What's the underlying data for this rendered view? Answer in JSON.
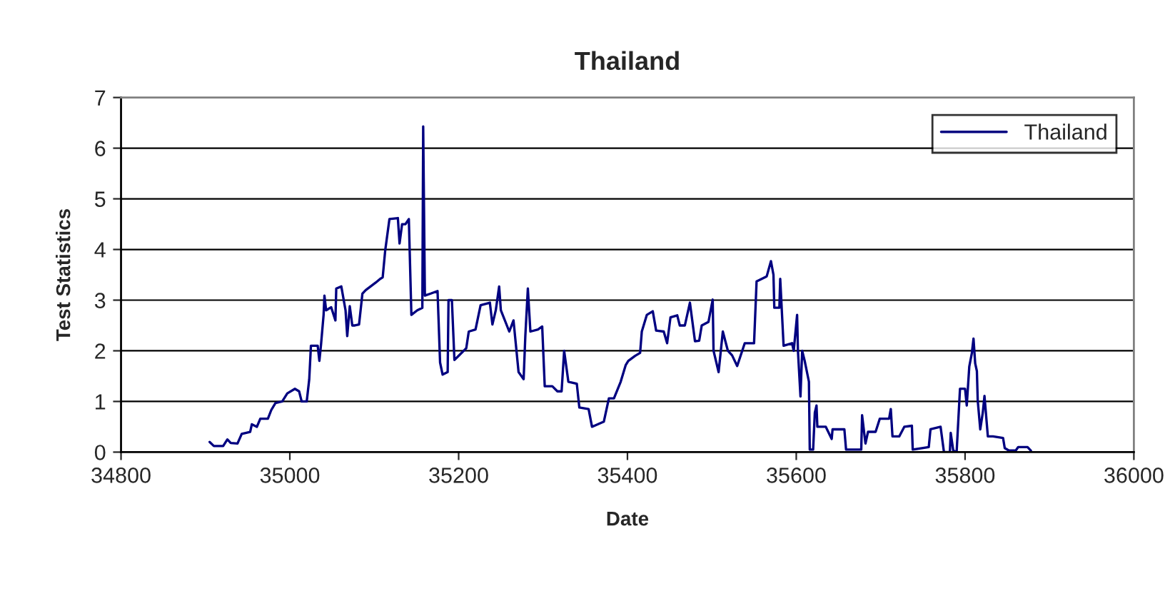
{
  "chart_data": {
    "type": "line",
    "title": "Thailand",
    "xlabel": "Date",
    "ylabel": "Test Statistics",
    "xlim": [
      34800,
      36000
    ],
    "xticks": [
      34800,
      35000,
      35200,
      35400,
      35600,
      35800,
      36000
    ],
    "ylim": [
      0,
      7
    ],
    "yticks": [
      0,
      1,
      2,
      3,
      4,
      5,
      6,
      7
    ],
    "grid": "y",
    "legend": "top right",
    "marker": "none",
    "line_style": "solid",
    "series": [
      {
        "name": "Thailand",
        "color": "#000080",
        "x": [
          34905,
          34910,
          34921,
          34926,
          34930,
          34938,
          34943,
          34953,
          34955,
          34961,
          34965,
          34974,
          34978,
          34983,
          34991,
          34997,
          35006,
          35011,
          35014,
          35020,
          35023,
          35025,
          35033,
          35035,
          35037,
          35040,
          35041,
          35043,
          35049,
          35054,
          35055,
          35061,
          35066,
          35068,
          35071,
          35074,
          35077,
          35082,
          35086,
          35090,
          35102,
          35107,
          35110,
          35113,
          35118,
          35128,
          35130,
          35133,
          35137,
          35141,
          35144,
          35151,
          35157,
          35158,
          35160,
          35167,
          35175,
          35176,
          35178,
          35181,
          35187,
          35188,
          35192,
          35195,
          35200,
          35209,
          35212,
          35220,
          35226,
          35237,
          35240,
          35244,
          35248,
          35250,
          35260,
          35265,
          35271,
          35277,
          35279,
          35282,
          35285,
          35294,
          35299,
          35302,
          35311,
          35317,
          35322,
          35325,
          35330,
          35340,
          35343,
          35354,
          35358,
          35372,
          35378,
          35384,
          35392,
          35398,
          35401,
          35409,
          35415,
          35417,
          35423,
          35430,
          35434,
          35443,
          35447,
          35451,
          35459,
          35462,
          35468,
          35474,
          35480,
          35485,
          35488,
          35496,
          35501,
          35502,
          35508,
          35513,
          35519,
          35524,
          35530,
          35539,
          35550,
          35553,
          35565,
          35570,
          35573,
          35574,
          35580,
          35581,
          35585,
          35595,
          35597,
          35601,
          35602,
          35605,
          35607,
          35610,
          35615,
          35616,
          35620,
          35622,
          35624,
          35625,
          35635,
          35642,
          35643,
          35657,
          35659,
          35677,
          35678,
          35682,
          35685,
          35694,
          35699,
          35710,
          35712,
          35714,
          35722,
          35728,
          35737,
          35738,
          35757,
          35759,
          35771,
          35775,
          35782,
          35783,
          35786,
          35790,
          35794,
          35800,
          35802,
          35805,
          35808,
          35810,
          35812,
          35814,
          35815,
          35818,
          35821,
          35823,
          35827,
          35833,
          35845,
          35847,
          35852,
          35860,
          35863,
          35874,
          35878
        ],
        "values": [
          0.2,
          0.12,
          0.12,
          0.25,
          0.18,
          0.17,
          0.36,
          0.4,
          0.55,
          0.5,
          0.66,
          0.66,
          0.83,
          0.97,
          1.0,
          1.16,
          1.25,
          1.2,
          1.0,
          1.0,
          1.44,
          2.1,
          2.1,
          1.8,
          2.13,
          2.71,
          3.09,
          2.8,
          2.86,
          2.6,
          3.23,
          3.27,
          2.8,
          2.29,
          2.88,
          2.5,
          2.5,
          2.52,
          3.13,
          3.2,
          3.35,
          3.42,
          3.45,
          3.98,
          4.6,
          4.62,
          4.12,
          4.5,
          4.5,
          4.6,
          2.71,
          2.8,
          2.85,
          6.43,
          3.09,
          3.13,
          3.18,
          2.71,
          1.77,
          1.53,
          1.58,
          3.0,
          3.0,
          1.82,
          1.9,
          2.05,
          2.38,
          2.42,
          2.9,
          2.95,
          2.52,
          2.8,
          3.27,
          2.8,
          2.38,
          2.6,
          1.58,
          1.44,
          2.29,
          3.23,
          2.38,
          2.42,
          2.48,
          1.3,
          1.3,
          1.2,
          1.2,
          2.0,
          1.39,
          1.35,
          0.88,
          0.85,
          0.5,
          0.6,
          1.06,
          1.06,
          1.39,
          1.72,
          1.8,
          1.9,
          1.96,
          2.38,
          2.71,
          2.78,
          2.4,
          2.38,
          2.15,
          2.66,
          2.7,
          2.5,
          2.5,
          2.95,
          2.19,
          2.2,
          2.5,
          2.57,
          3.01,
          2.0,
          1.58,
          2.38,
          2.0,
          1.91,
          1.7,
          2.15,
          2.15,
          3.37,
          3.47,
          3.77,
          3.5,
          2.85,
          2.85,
          3.42,
          2.1,
          2.15,
          2.0,
          2.71,
          2.0,
          1.1,
          2.0,
          1.8,
          1.39,
          0.05,
          0.05,
          0.78,
          0.92,
          0.5,
          0.5,
          0.26,
          0.45,
          0.45,
          0.05,
          0.05,
          0.73,
          0.17,
          0.4,
          0.4,
          0.66,
          0.66,
          0.85,
          0.31,
          0.31,
          0.5,
          0.52,
          0.05,
          0.1,
          0.45,
          0.5,
          0.0,
          0.0,
          0.38,
          0.03,
          0.0,
          1.25,
          1.25,
          0.92,
          1.69,
          1.95,
          2.24,
          1.75,
          1.6,
          1.02,
          0.45,
          0.78,
          1.11,
          0.31,
          0.31,
          0.28,
          0.08,
          0.03,
          0.03,
          0.1,
          0.1,
          0.03
        ]
      }
    ]
  }
}
